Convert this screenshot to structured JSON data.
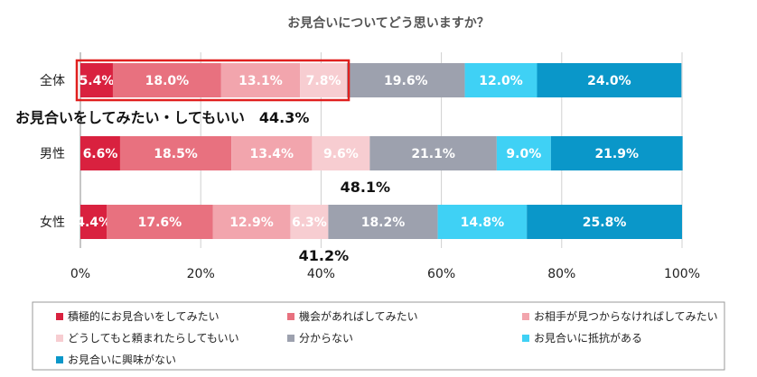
{
  "chart_data": {
    "type": "bar",
    "orientation": "horizontal",
    "stacked": true,
    "title": "お見合いについてどう思いますか？",
    "categories": [
      "全体",
      "男性",
      "女性"
    ],
    "series": [
      {
        "name": "積極的にお見合いをしてみたい",
        "color": "#d9213f",
        "values": [
          5.4,
          6.6,
          4.4
        ]
      },
      {
        "name": "機会があればしてみたい",
        "color": "#e8717f",
        "values": [
          18.0,
          18.5,
          17.6
        ]
      },
      {
        "name": "お相手が見つからなければしてみたい",
        "color": "#f2a5ad",
        "values": [
          13.1,
          13.4,
          12.9
        ]
      },
      {
        "name": "どうしてもと頼まれたらしてもいい",
        "color": "#f7cdd1",
        "values": [
          7.8,
          9.6,
          6.3
        ]
      },
      {
        "name": "分からない",
        "color": "#9da1ae",
        "values": [
          19.6,
          21.1,
          18.2
        ]
      },
      {
        "name": "お見合いに抵抗がある",
        "color": "#3fd1f5",
        "values": [
          12.0,
          9.0,
          14.8
        ]
      },
      {
        "name": "お見合いに興味がない",
        "color": "#0a97c9",
        "values": [
          24.0,
          21.9,
          25.8
        ]
      }
    ],
    "value_labels": [
      [
        "5.4%",
        "18.0%",
        "13.1%",
        "7.8%",
        "19.6%",
        "12.0%",
        "24.0%"
      ],
      [
        "6.6%",
        "18.5%",
        "13.4%",
        "9.6%",
        "21.1%",
        "9.0%",
        "21.9%"
      ],
      [
        "4.4%",
        "17.6%",
        "12.9%",
        "6.3%",
        "18.2%",
        "14.8%",
        "25.8%"
      ]
    ],
    "x_ticks": [
      "0%",
      "20%",
      "40%",
      "60%",
      "80%",
      "100%"
    ],
    "xlim": [
      0,
      100
    ],
    "annotations": [
      {
        "text": "お見合いをしてみたい・してもいい　44.3%",
        "category": "全体",
        "value": 44.3,
        "highlight": true
      },
      {
        "text": "48.1%",
        "category": "男性",
        "value": 48.1
      },
      {
        "text": "41.2%",
        "category": "女性",
        "value": 41.2
      }
    ],
    "highlight_color": "#e0201f",
    "grid": "vertical",
    "legend": "bottom"
  }
}
